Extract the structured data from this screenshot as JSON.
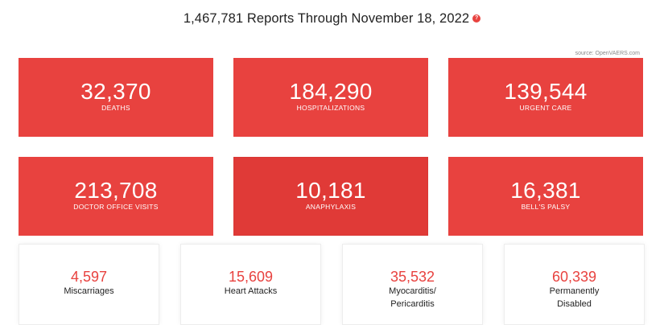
{
  "header": {
    "title": "1,467,781 Reports Through November 18, 2022",
    "help_glyph": "?"
  },
  "source": "source: OpenVAERS.com",
  "colors": {
    "accent": "#e8423f",
    "accent_dark": "#e03a37",
    "text": "#222222",
    "muted": "#8a8a8a"
  },
  "stats": [
    {
      "value": "32,370",
      "label": "DEATHS"
    },
    {
      "value": "184,290",
      "label": "HOSPITALIZATIONS"
    },
    {
      "value": "139,544",
      "label": "URGENT CARE"
    },
    {
      "value": "213,708",
      "label": "DOCTOR OFFICE VISITS"
    },
    {
      "value": "10,181",
      "label": "ANAPHYLAXIS"
    },
    {
      "value": "16,381",
      "label": "BELL'S PALSY"
    }
  ],
  "secondary_stats": [
    {
      "value": "4,597",
      "label_line1": "Miscarriages",
      "label_line2": ""
    },
    {
      "value": "15,609",
      "label_line1": "Heart Attacks",
      "label_line2": ""
    },
    {
      "value": "35,532",
      "label_line1": "Myocarditis/",
      "label_line2": "Pericarditis"
    },
    {
      "value": "60,339",
      "label_line1": "Permanently",
      "label_line2": "Disabled"
    }
  ]
}
